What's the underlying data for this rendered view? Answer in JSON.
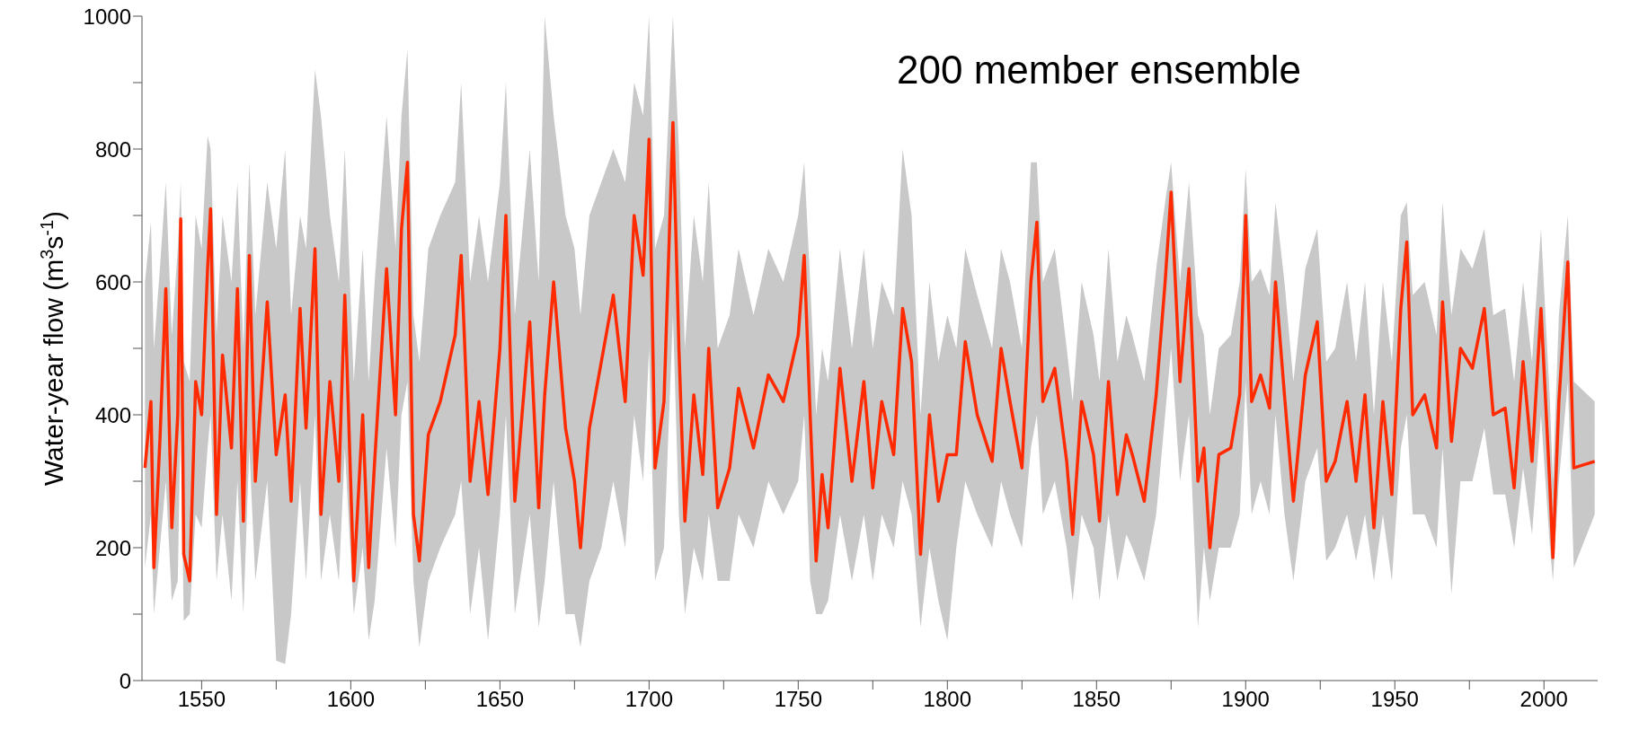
{
  "chart_data": {
    "type": "line",
    "ylabel": "Water-year flow (m$^{3}$s$^{-1}$)",
    "annotations": [
      "200 member ensemble"
    ],
    "xlim": [
      1530,
      2018
    ],
    "ylim": [
      0,
      1000
    ],
    "xticks": [
      1550,
      {
        "value": 1575,
        "label": null
      },
      1600,
      {
        "value": 1625,
        "label": null
      },
      1650,
      {
        "value": 1675,
        "label": null
      },
      1700,
      {
        "value": 1725,
        "label": null
      },
      1750,
      {
        "value": 1775,
        "label": null
      },
      1800,
      {
        "value": 1825,
        "label": null
      },
      1850,
      {
        "value": 1875,
        "label": null
      },
      1900,
      {
        "value": 1925,
        "label": null
      },
      1950,
      {
        "value": 1975,
        "label": null
      },
      2000
    ],
    "yticks": [
      0,
      {
        "value": 100,
        "label": null
      },
      200,
      {
        "value": 300,
        "label": null
      },
      400,
      {
        "value": 500,
        "label": null
      },
      600,
      {
        "value": 700,
        "label": null
      },
      800,
      {
        "value": 900,
        "label": null
      },
      1000
    ],
    "x": [
      1531,
      1533,
      1534,
      1536,
      1538,
      1540,
      1542,
      1543,
      1544,
      1546,
      1548,
      1550,
      1552,
      1553,
      1555,
      1557,
      1560,
      1562,
      1564,
      1566,
      1568,
      1572,
      1575,
      1578,
      1580,
      1583,
      1585,
      1588,
      1590,
      1593,
      1596,
      1598,
      1601,
      1604,
      1606,
      1608,
      1612,
      1615,
      1617,
      1619,
      1621,
      1623,
      1626,
      1630,
      1635,
      1637,
      1640,
      1643,
      1646,
      1650,
      1652,
      1655,
      1660,
      1663,
      1665,
      1668,
      1672,
      1675,
      1677,
      1680,
      1684,
      1688,
      1692,
      1695,
      1698,
      1700,
      1702,
      1705,
      1708,
      1710,
      1712,
      1715,
      1718,
      1720,
      1723,
      1727,
      1730,
      1735,
      1740,
      1745,
      1750,
      1752,
      1754,
      1756,
      1758,
      1760,
      1764,
      1768,
      1772,
      1775,
      1778,
      1782,
      1785,
      1788,
      1791,
      1794,
      1797,
      1800,
      1803,
      1806,
      1810,
      1815,
      1818,
      1821,
      1825,
      1828,
      1830,
      1832,
      1836,
      1840,
      1842,
      1845,
      1849,
      1851,
      1854,
      1857,
      1860,
      1862,
      1866,
      1870,
      1873,
      1875,
      1878,
      1881,
      1884,
      1886,
      1888,
      1891,
      1895,
      1898,
      1900,
      1902,
      1905,
      1908,
      1910,
      1913,
      1916,
      1920,
      1924,
      1927,
      1930,
      1934,
      1937,
      1940,
      1943,
      1946,
      1949,
      1952,
      1954,
      1956,
      1960,
      1964,
      1966,
      1969,
      1972,
      1976,
      1980,
      1983,
      1987,
      1990,
      1993,
      1996,
      1999,
      2002,
      2003,
      2005,
      2008,
      2010,
      2017
    ],
    "series": [
      {
        "color": "#ff2a00",
        "values": [
          320,
          420,
          170,
          360,
          590,
          230,
          400,
          695,
          190,
          150,
          450,
          400,
          620,
          710,
          250,
          490,
          350,
          590,
          240,
          640,
          300,
          570,
          340,
          430,
          270,
          560,
          380,
          650,
          250,
          450,
          300,
          580,
          150,
          400,
          170,
          330,
          620,
          400,
          680,
          780,
          250,
          180,
          370,
          420,
          520,
          640,
          300,
          420,
          280,
          500,
          700,
          270,
          540,
          260,
          430,
          600,
          380,
          300,
          200,
          380,
          480,
          580,
          420,
          700,
          610,
          815,
          320,
          420,
          840,
          500,
          240,
          430,
          310,
          500,
          260,
          320,
          440,
          350,
          460,
          420,
          520,
          640,
          400,
          180,
          310,
          230,
          470,
          300,
          450,
          290,
          420,
          340,
          560,
          480,
          190,
          400,
          270,
          340,
          340,
          510,
          400,
          330,
          500,
          420,
          320,
          600,
          690,
          420,
          470,
          330,
          220,
          420,
          340,
          240,
          450,
          280,
          370,
          340,
          270,
          430,
          600,
          735,
          450,
          620,
          300,
          350,
          200,
          340,
          350,
          430,
          700,
          420,
          460,
          410,
          600,
          430,
          270,
          460,
          540,
          300,
          330,
          420,
          300,
          430,
          230,
          420,
          280,
          560,
          660,
          400,
          430,
          350,
          570,
          360,
          500,
          470,
          560,
          400,
          410,
          290,
          480,
          330,
          560,
          290,
          185,
          420,
          630,
          320,
          330
        ],
        "lower": [
          170,
          250,
          100,
          200,
          300,
          120,
          150,
          400,
          90,
          100,
          250,
          230,
          350,
          400,
          150,
          250,
          120,
          300,
          100,
          350,
          150,
          300,
          30,
          25,
          100,
          300,
          150,
          400,
          150,
          250,
          150,
          350,
          100,
          200,
          60,
          120,
          350,
          200,
          400,
          450,
          150,
          50,
          150,
          200,
          250,
          300,
          100,
          200,
          60,
          250,
          400,
          100,
          250,
          80,
          150,
          300,
          100,
          100,
          50,
          150,
          200,
          300,
          200,
          400,
          300,
          500,
          150,
          200,
          550,
          250,
          100,
          200,
          150,
          250,
          150,
          150,
          250,
          200,
          300,
          250,
          300,
          400,
          150,
          100,
          100,
          120,
          250,
          150,
          250,
          150,
          250,
          200,
          300,
          250,
          80,
          200,
          120,
          60,
          200,
          300,
          250,
          200,
          300,
          250,
          200,
          350,
          400,
          250,
          300,
          200,
          120,
          250,
          200,
          120,
          250,
          150,
          220,
          200,
          150,
          250,
          400,
          500,
          300,
          400,
          80,
          200,
          120,
          200,
          200,
          250,
          450,
          250,
          300,
          250,
          400,
          250,
          150,
          300,
          350,
          180,
          200,
          250,
          180,
          250,
          150,
          250,
          150,
          350,
          400,
          250,
          250,
          200,
          350,
          130,
          300,
          300,
          380,
          280,
          280,
          200,
          320,
          220,
          400,
          200,
          150,
          300,
          450,
          170,
          250
        ],
        "upper": [
          600,
          690,
          500,
          620,
          750,
          520,
          650,
          750,
          480,
          450,
          700,
          650,
          820,
          800,
          520,
          700,
          600,
          750,
          500,
          780,
          550,
          750,
          650,
          800,
          550,
          700,
          650,
          920,
          850,
          700,
          600,
          800,
          450,
          650,
          450,
          600,
          850,
          650,
          850,
          950,
          550,
          480,
          650,
          700,
          750,
          900,
          600,
          700,
          600,
          750,
          900,
          550,
          800,
          600,
          1000,
          850,
          700,
          650,
          550,
          700,
          750,
          800,
          750,
          900,
          850,
          1000,
          650,
          700,
          1000,
          800,
          500,
          700,
          600,
          750,
          500,
          550,
          650,
          550,
          650,
          600,
          700,
          780,
          600,
          400,
          500,
          450,
          650,
          500,
          650,
          500,
          600,
          550,
          800,
          700,
          400,
          600,
          480,
          550,
          500,
          650,
          580,
          500,
          650,
          600,
          500,
          780,
          780,
          600,
          650,
          500,
          420,
          600,
          520,
          450,
          650,
          480,
          550,
          520,
          450,
          620,
          720,
          780,
          600,
          750,
          550,
          520,
          400,
          500,
          520,
          600,
          770,
          600,
          620,
          580,
          720,
          600,
          450,
          620,
          680,
          480,
          500,
          600,
          480,
          600,
          400,
          600,
          480,
          700,
          720,
          580,
          600,
          520,
          720,
          550,
          650,
          620,
          680,
          550,
          560,
          450,
          600,
          480,
          680,
          420,
          300,
          550,
          700,
          450,
          420
        ]
      }
    ]
  }
}
